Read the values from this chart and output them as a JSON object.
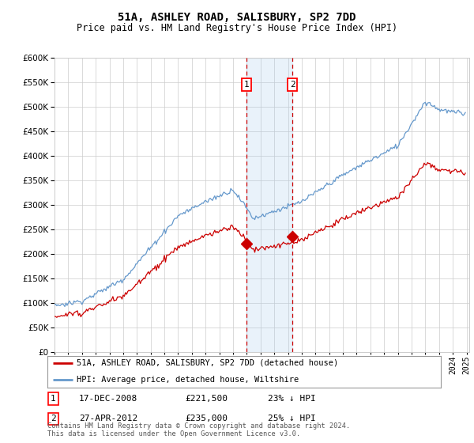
{
  "title": "51A, ASHLEY ROAD, SALISBURY, SP2 7DD",
  "subtitle": "Price paid vs. HM Land Registry's House Price Index (HPI)",
  "property_label": "51A, ASHLEY ROAD, SALISBURY, SP2 7DD (detached house)",
  "hpi_label": "HPI: Average price, detached house, Wiltshire",
  "footer": "Contains HM Land Registry data © Crown copyright and database right 2024.\nThis data is licensed under the Open Government Licence v3.0.",
  "transactions": [
    {
      "num": 1,
      "date": "17-DEC-2008",
      "price": "£221,500",
      "pct": "23% ↓ HPI",
      "year": 2008.96
    },
    {
      "num": 2,
      "date": "27-APR-2012",
      "price": "£235,000",
      "pct": "25% ↓ HPI",
      "year": 2012.32
    }
  ],
  "transaction_prices": [
    221500,
    235000
  ],
  "ylim": [
    0,
    600000
  ],
  "yticks": [
    0,
    50000,
    100000,
    150000,
    200000,
    250000,
    300000,
    350000,
    400000,
    450000,
    500000,
    550000,
    600000
  ],
  "property_color": "#cc0000",
  "hpi_color": "#6699cc",
  "highlight_color": "#ddeeff",
  "grid_color": "#cccccc",
  "background_color": "#ffffff"
}
